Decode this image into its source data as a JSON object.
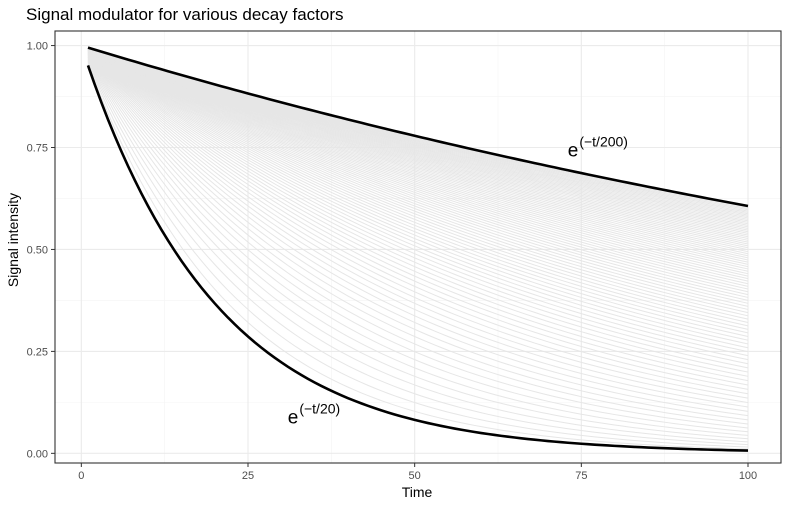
{
  "chart_data": {
    "type": "line",
    "title": "Signal modulator for various decay factors",
    "xlabel": "Time",
    "ylabel": "Signal intensity",
    "xlim": [
      -3.95,
      104.95
    ],
    "ylim": [
      -0.0237,
      1.0357
    ],
    "x_ticks": [
      0,
      25,
      50,
      75,
      100
    ],
    "x_tick_labels": [
      "0",
      "25",
      "50",
      "75",
      "100"
    ],
    "y_ticks": [
      0,
      0.25,
      0.5,
      0.75,
      1.0
    ],
    "y_tick_labels": [
      "0.00",
      "0.25",
      "0.50",
      "0.75",
      "1.00"
    ],
    "grid": true,
    "x_range": [
      1,
      100
    ],
    "function": "exp(-t/tau)",
    "tau_range": [
      20,
      200
    ],
    "tau_step": 2,
    "highlight_color": "#000000",
    "family_color": "#e6e6e6",
    "annotations": [
      {
        "base": "e",
        "exponent": "(−t/200)",
        "x": 75,
        "y": 0.745
      },
      {
        "base": "e",
        "exponent": "(−t/20)",
        "x": 33,
        "y": 0.09
      }
    ]
  }
}
